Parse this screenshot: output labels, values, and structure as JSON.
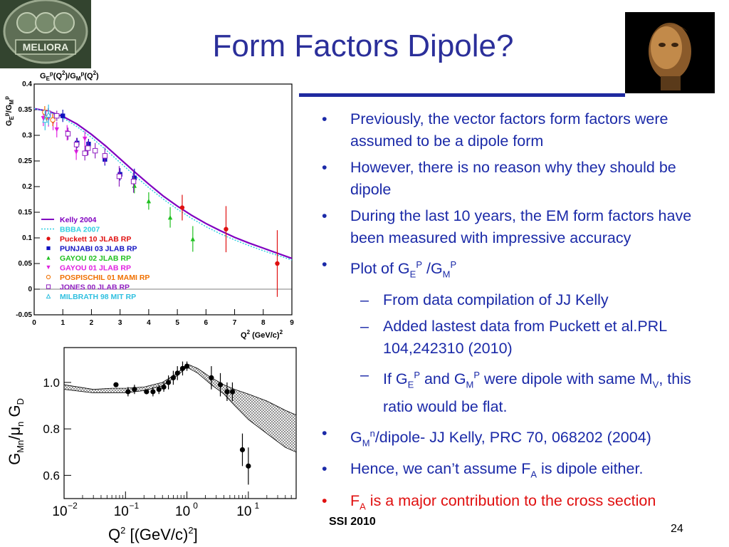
{
  "slide": {
    "title": "Form Factors Dipole?",
    "footer_left": "SSI 2010",
    "page_number": "24",
    "logo_left_text": "MELIORA"
  },
  "bullets": [
    {
      "level": 1,
      "parts": [
        {
          "t": "Previously, the vector factors form factors were assumed to be a dipole form"
        }
      ]
    },
    {
      "level": 1,
      "parts": [
        {
          "t": "However, there is no reason why they should be dipole"
        }
      ]
    },
    {
      "level": 1,
      "parts": [
        {
          "t": "During the last 10 years, the EM form factors have been measured with impressive accuracy"
        }
      ]
    },
    {
      "level": 1,
      "parts": [
        {
          "t": "Plot of G"
        },
        {
          "sub": "E"
        },
        {
          "sup": "P"
        },
        {
          "t": " /G"
        },
        {
          "sub": "M"
        },
        {
          "sup": "P"
        }
      ]
    },
    {
      "level": 2,
      "parts": [
        {
          "t": "From data compilation of JJ Kelly"
        }
      ]
    },
    {
      "level": 2,
      "parts": [
        {
          "t": "Added lastest data from Puckett et al.PRL 104,242310 (2010)"
        }
      ]
    },
    {
      "level": 2,
      "parts": [
        {
          "t": "If G"
        },
        {
          "sub": "E"
        },
        {
          "sup": "P"
        },
        {
          "t": "  and G"
        },
        {
          "sub": "M"
        },
        {
          "sup": "P"
        },
        {
          "t": "  were dipole with same M"
        },
        {
          "sub": "V"
        },
        {
          "t": ", this ratio would be flat."
        }
      ]
    },
    {
      "level": 1,
      "parts": [
        {
          "t": "G"
        },
        {
          "sub": "M"
        },
        {
          "sup": "n"
        },
        {
          "t": "/dipole- JJ Kelly, PRC 70, 068202 (2004)"
        }
      ]
    },
    {
      "level": 1,
      "parts": [
        {
          "t": "Hence, we can’t assume F"
        },
        {
          "sub": "A"
        },
        {
          "t": " is dipole either."
        }
      ]
    },
    {
      "level": 1,
      "red": true,
      "parts": [
        {
          "t": "F"
        },
        {
          "sub": "A"
        },
        {
          "t": " is a major contribution to the cross section"
        }
      ]
    }
  ],
  "chart_data": [
    {
      "type": "scatter",
      "title": "G_E^p(Q^2)/G_M^p(Q^2)",
      "ylabel": "G_E^p/G_M^p",
      "xlabel": "Q^2 (GeV/c)^2",
      "xlim": [
        0,
        9
      ],
      "ylim": [
        -0.05,
        0.4
      ],
      "x_ticks": [
        0,
        1,
        2,
        3,
        4,
        5,
        6,
        7,
        8,
        9
      ],
      "y_ticks": [
        -0.05,
        0,
        0.05,
        0.1,
        0.15,
        0.2,
        0.25,
        0.3,
        0.35,
        0.4
      ],
      "legend": [
        {
          "label": "Kelly 2004",
          "color": "#8000c0",
          "marker": "line"
        },
        {
          "label": "BBBA 2007",
          "color": "#30d0e0",
          "marker": "dotted-line"
        },
        {
          "label": "Puckett 10 JLAB RP",
          "color": "#e01010",
          "marker": "circle"
        },
        {
          "label": "PUNJABI 03 JLAB RP",
          "color": "#1010c0",
          "marker": "square"
        },
        {
          "label": "GAYOU 02 JLAB RP",
          "color": "#20c020",
          "marker": "triangle"
        },
        {
          "label": "GAYOU 01 JLAB RP",
          "color": "#e020e0",
          "marker": "triangle-down"
        },
        {
          "label": "POSPISCHIL 01 MAMI RP",
          "color": "#f07000",
          "marker": "open-circle"
        },
        {
          "label": "JONES 00 JLAB RP",
          "color": "#9020c0",
          "marker": "open-square"
        },
        {
          "label": "MILBRATH 98 MIT RP",
          "color": "#30c0e0",
          "marker": "open-triangle"
        }
      ],
      "curves": [
        {
          "name": "Kelly 2004",
          "x": [
            0,
            0.5,
            1,
            1.5,
            2,
            2.5,
            3,
            3.5,
            4,
            4.5,
            5,
            5.5,
            6,
            6.5,
            7,
            7.5,
            8,
            8.5,
            9
          ],
          "y": [
            0.352,
            0.347,
            0.337,
            0.322,
            0.302,
            0.279,
            0.254,
            0.229,
            0.205,
            0.182,
            0.162,
            0.144,
            0.128,
            0.114,
            0.101,
            0.09,
            0.08,
            0.07,
            0.06
          ]
        },
        {
          "name": "BBBA 2007",
          "x": [
            0,
            0.5,
            1,
            1.5,
            2,
            2.5,
            3,
            3.5,
            4,
            4.5,
            5,
            5.5,
            6,
            6.5,
            7,
            7.5,
            8,
            8.5,
            9
          ],
          "y": [
            0.352,
            0.346,
            0.334,
            0.317,
            0.296,
            0.272,
            0.247,
            0.222,
            0.198,
            0.176,
            0.156,
            0.138,
            0.122,
            0.108,
            0.096,
            0.085,
            0.075,
            0.066,
            0.057
          ]
        }
      ],
      "series": [
        {
          "name": "Puckett 10 JLAB RP",
          "points": [
            [
              5.17,
              0.159,
              0.025
            ],
            [
              6.7,
              0.117,
              0.045
            ],
            [
              8.49,
              0.05,
              0.065
            ]
          ]
        },
        {
          "name": "PUNJABI 03 JLAB RP",
          "points": [
            [
              0.49,
              0.341,
              0.01
            ],
            [
              1.0,
              0.338,
              0.012
            ],
            [
              1.5,
              0.285,
              0.01
            ],
            [
              1.9,
              0.283,
              0.01
            ],
            [
              2.47,
              0.253,
              0.012
            ],
            [
              3.0,
              0.224,
              0.012
            ],
            [
              3.5,
              0.217,
              0.018
            ]
          ]
        },
        {
          "name": "GAYOU 02 JLAB RP",
          "points": [
            [
              3.5,
              0.202,
              0.015
            ],
            [
              4.0,
              0.172,
              0.017
            ],
            [
              4.75,
              0.14,
              0.02
            ],
            [
              5.54,
              0.098,
              0.025
            ]
          ]
        },
        {
          "name": "GAYOU 01 JLAB RP",
          "points": [
            [
              0.32,
              0.333,
              0.015
            ],
            [
              0.5,
              0.332,
              0.015
            ],
            [
              0.66,
              0.325,
              0.015
            ],
            [
              0.79,
              0.311,
              0.015
            ],
            [
              1.15,
              0.305,
              0.015
            ],
            [
              1.47,
              0.267,
              0.015
            ],
            [
              1.77,
              0.293,
              0.015
            ]
          ]
        },
        {
          "name": "POSPISCHIL 01 MAMI RP",
          "points": [
            [
              0.37,
              0.345,
              0.012
            ],
            [
              0.44,
              0.338,
              0.012
            ],
            [
              0.65,
              0.33,
              0.012
            ]
          ]
        },
        {
          "name": "JONES 00 JLAB RP",
          "points": [
            [
              0.49,
              0.343,
              0.01
            ],
            [
              0.79,
              0.338,
              0.01
            ],
            [
              1.18,
              0.303,
              0.012
            ],
            [
              1.48,
              0.282,
              0.013
            ],
            [
              1.77,
              0.265,
              0.014
            ],
            [
              1.88,
              0.275,
              0.014
            ],
            [
              2.13,
              0.27,
              0.015
            ],
            [
              2.47,
              0.26,
              0.016
            ],
            [
              2.97,
              0.22,
              0.02
            ],
            [
              3.47,
              0.21,
              0.022
            ]
          ]
        },
        {
          "name": "MILBRATH 98 MIT RP",
          "points": [
            [
              0.38,
              0.33,
              0.02
            ],
            [
              0.5,
              0.34,
              0.02
            ]
          ]
        }
      ]
    },
    {
      "type": "scatter",
      "xlabel": "Q² [(GeV/c)²]",
      "ylabel": "G_Mn/μ_n G_D",
      "xscale": "log",
      "xlim": [
        0.01,
        60
      ],
      "ylim": [
        0.5,
        1.15
      ],
      "x_ticks": [
        "10^-2",
        "10^-1",
        "10^0",
        "10^1"
      ],
      "y_ticks": [
        0.6,
        0.8,
        1.0
      ],
      "band": {
        "x": [
          0.01,
          0.03,
          0.06,
          0.1,
          0.2,
          0.4,
          0.7,
          1.0,
          1.5,
          2.5,
          4,
          6,
          10,
          20,
          40,
          60
        ],
        "upper": [
          0.99,
          0.97,
          0.975,
          0.975,
          0.98,
          1.0,
          1.04,
          1.08,
          1.06,
          1.02,
          0.99,
          0.97,
          0.95,
          0.92,
          0.88,
          0.86
        ],
        "lower": [
          0.97,
          0.955,
          0.955,
          0.955,
          0.965,
          0.985,
          1.03,
          1.065,
          1.04,
          0.99,
          0.95,
          0.9,
          0.84,
          0.78,
          0.72,
          0.7
        ]
      },
      "points": [
        [
          0.07,
          0.99,
          0.01
        ],
        [
          0.11,
          0.96,
          0.02
        ],
        [
          0.14,
          0.97,
          0.02
        ],
        [
          0.22,
          0.96,
          0.01
        ],
        [
          0.28,
          0.96,
          0.02
        ],
        [
          0.35,
          0.97,
          0.02
        ],
        [
          0.42,
          0.98,
          0.02
        ],
        [
          0.5,
          1.0,
          0.03
        ],
        [
          0.6,
          1.02,
          0.03
        ],
        [
          0.7,
          1.04,
          0.03
        ],
        [
          0.85,
          1.06,
          0.03
        ],
        [
          1.0,
          1.07,
          0.02
        ],
        [
          2.5,
          1.02,
          0.05
        ],
        [
          3.5,
          0.99,
          0.05
        ],
        [
          4.5,
          0.96,
          0.04
        ],
        [
          5.5,
          0.96,
          0.04
        ],
        [
          8.0,
          0.71,
          0.07
        ],
        [
          10.0,
          0.64,
          0.08
        ]
      ]
    }
  ]
}
